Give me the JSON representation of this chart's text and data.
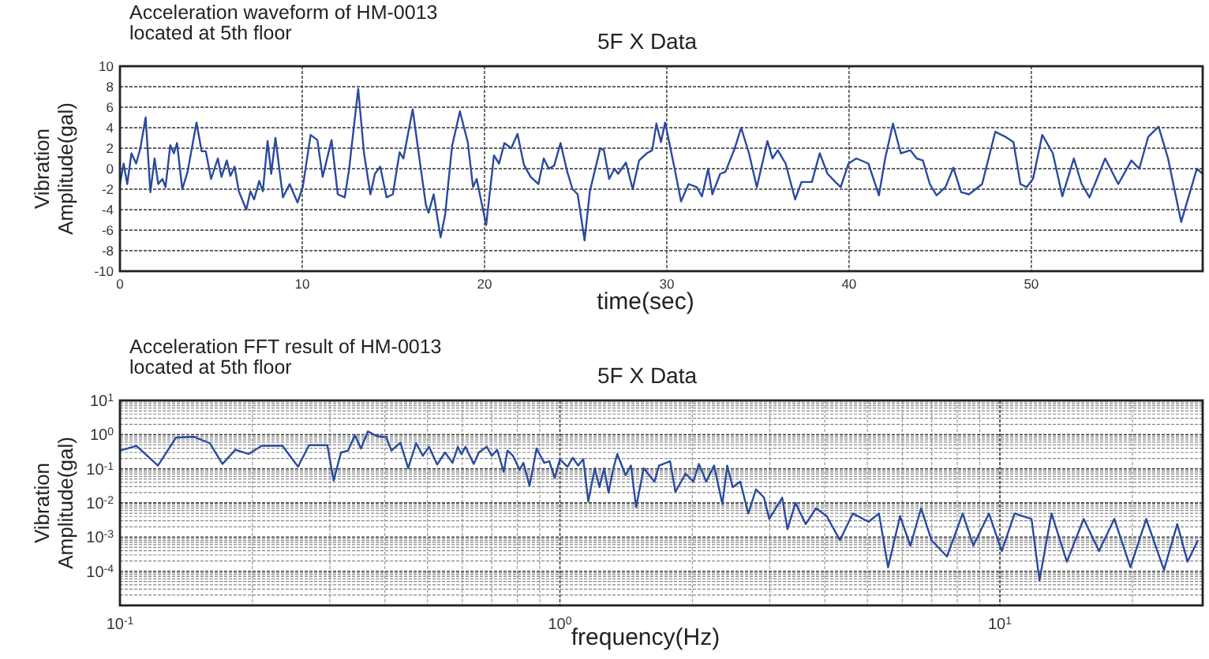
{
  "chart_data": [
    {
      "type": "line",
      "title": "5F X Data",
      "subtitle": "Acceleration waveform of HM-0013\nlocated at 5th floor",
      "xlabel": "time(sec)",
      "ylabel": "Vibration\nAmplitude(gal)",
      "xlim": [
        0,
        59.4
      ],
      "xticks": [
        0,
        10,
        20,
        30,
        40,
        50
      ],
      "ylim": [
        -10,
        10
      ],
      "yticks": [
        -10,
        -8,
        -6,
        -4,
        -2,
        0,
        2,
        4,
        6,
        8,
        10
      ],
      "grid": true,
      "marker": "none",
      "line_style": "solid",
      "series": [
        {
          "color": "#2a4a9e",
          "x": [
            0,
            0.2,
            0.4,
            0.63,
            0.89,
            1.12,
            1.41,
            1.67,
            1.9,
            2.1,
            2.33,
            2.5,
            2.76,
            2.96,
            3.13,
            3.42,
            3.71,
            4.2,
            4.48,
            4.71,
            5.0,
            5.37,
            5.57,
            5.86,
            6.06,
            6.29,
            6.52,
            6.93,
            7.16,
            7.36,
            7.64,
            7.84,
            8.1,
            8.3,
            8.53,
            8.94,
            9.31,
            9.74,
            10.03,
            10.46,
            10.83,
            11.12,
            11.61,
            11.95,
            12.33,
            12.56,
            13.07,
            13.39,
            13.74,
            13.99,
            14.28,
            14.63,
            14.97,
            15.34,
            15.55,
            16.06,
            16.35,
            16.78,
            16.93,
            17.21,
            17.59,
            17.84,
            18.22,
            18.65,
            19.08,
            19.37,
            19.57,
            20.09,
            20.52,
            20.8,
            21.09,
            21.47,
            21.81,
            22.16,
            22.53,
            22.96,
            23.25,
            23.53,
            23.82,
            24.17,
            24.54,
            24.83,
            25.11,
            25.49,
            25.78,
            26.35,
            26.55,
            26.84,
            27.13,
            27.33,
            27.76,
            28.13,
            28.48,
            28.9,
            29.2,
            29.43,
            29.68,
            29.91,
            30.43,
            30.78,
            31.2,
            31.64,
            31.93,
            32.27,
            32.5,
            32.93,
            33.22,
            33.71,
            34.08,
            34.51,
            34.94,
            35.52,
            35.8,
            36.09,
            36.52,
            37.04,
            37.39,
            37.96,
            38.39,
            38.82,
            39.25,
            39.54,
            39.97,
            40.4,
            41.06,
            41.64,
            41.98,
            42.41,
            42.84,
            43.36,
            43.71,
            44.05,
            44.43,
            44.8,
            45.29,
            45.72,
            46.15,
            46.58,
            47.3,
            48.02,
            48.59,
            49.02,
            49.4,
            49.74,
            50.09,
            50.6,
            51.18,
            51.7,
            52.33,
            52.76,
            53.19,
            54.05,
            54.77,
            55.49,
            55.92,
            56.41,
            56.98,
            57.5,
            58.22,
            58.65,
            59.08,
            59.4
          ],
          "values": [
            -1.5,
            0.5,
            -1.5,
            1.5,
            0.5,
            2,
            5,
            -2.3,
            1,
            -1.5,
            -1,
            -1.8,
            2.3,
            1.5,
            2.5,
            -2,
            -0.3,
            4.5,
            1.7,
            1.7,
            -1,
            1,
            -0.8,
            0.8,
            -0.7,
            0.2,
            -2.2,
            -4,
            -2.2,
            -3,
            -1.2,
            -2.2,
            2.7,
            -0.5,
            3,
            -2.8,
            -1.5,
            -3.3,
            -1.8,
            3.3,
            2.8,
            -0.8,
            2.8,
            -2.5,
            -2.8,
            -0.2,
            7.8,
            1.5,
            -2.5,
            -0.5,
            0.2,
            -2.8,
            -2.5,
            1.6,
            1,
            5.8,
            2,
            -3.5,
            -4.3,
            -2.5,
            -6.7,
            -4.5,
            2.2,
            5.6,
            2.6,
            -1.8,
            -1,
            -5.5,
            1.3,
            0.5,
            2.5,
            2,
            3.4,
            0.4,
            -0.8,
            -1.5,
            1,
            0,
            0.3,
            2.5,
            -0.3,
            -2,
            -2.5,
            -7,
            -2.2,
            2,
            1.8,
            -1,
            0,
            -0.5,
            0.6,
            -2,
            0.8,
            1.5,
            1.8,
            4.4,
            2.6,
            4.5,
            0,
            -3.2,
            -1.5,
            -1.8,
            -2.7,
            0,
            -2.5,
            -0.5,
            -0.3,
            1.9,
            4,
            1.5,
            -1.8,
            2.7,
            1,
            1.8,
            0.5,
            -3,
            -1.3,
            -1.3,
            1.5,
            -0.5,
            -1.3,
            -1.8,
            0.5,
            1,
            0.5,
            -2.6,
            1,
            4.4,
            1.5,
            1.8,
            1,
            0.8,
            -1.5,
            -2.6,
            -1.8,
            0.1,
            -2.3,
            -2.5,
            -1.5,
            3.6,
            3.1,
            2.6,
            -1.5,
            -1.8,
            -1,
            3.3,
            1.5,
            -2.7,
            1,
            -1.5,
            -2.8,
            1,
            -1.5,
            0.8,
            0,
            3.1,
            4.1,
            1,
            -5.2,
            -2.6,
            0,
            -0.5
          ]
        }
      ]
    },
    {
      "type": "line",
      "title": "5F X Data",
      "subtitle": "Acceleration FFT result of HM-0013\nlocated at 5th floor",
      "xlabel": "frequency(Hz)",
      "ylabel": "Vibration\nAmplitude(gal)",
      "log": "xy",
      "xlim": [
        0.1,
        28.9
      ],
      "xticks": [
        {
          "value": 0.1,
          "label": "10$^{-1}$"
        },
        {
          "value": 1,
          "label": "10$^{0}$"
        },
        {
          "value": 10,
          "label": "10$^{1}$"
        }
      ],
      "ylim": [
        1e-05,
        10
      ],
      "yticks": [
        {
          "value": 0.0001,
          "label": "10$^{-4}$"
        },
        {
          "value": 0.001,
          "label": "10$^{-3}$"
        },
        {
          "value": 0.01,
          "label": "10$^{-2}$"
        },
        {
          "value": 0.1,
          "label": "10$^{-1}$"
        },
        {
          "value": 1,
          "label": "10$^{0}$"
        },
        {
          "value": 10,
          "label": "10$^{1}$"
        }
      ],
      "grid": true,
      "marker": "none",
      "line_style": "solid",
      "series": [
        {
          "color": "#2a4a9e",
          "x": [
            0.1,
            0.109,
            0.122,
            0.134,
            0.147,
            0.16,
            0.171,
            0.183,
            0.196,
            0.21,
            0.234,
            0.254,
            0.269,
            0.296,
            0.306,
            0.318,
            0.33,
            0.342,
            0.353,
            0.366,
            0.384,
            0.403,
            0.414,
            0.434,
            0.452,
            0.471,
            0.488,
            0.504,
            0.526,
            0.548,
            0.57,
            0.586,
            0.597,
            0.61,
            0.637,
            0.654,
            0.682,
            0.7,
            0.72,
            0.745,
            0.76,
            0.782,
            0.81,
            0.826,
            0.853,
            0.885,
            0.921,
            0.946,
            0.973,
            1.0,
            1.04,
            1.07,
            1.1,
            1.13,
            1.16,
            1.2,
            1.23,
            1.26,
            1.29,
            1.32,
            1.35,
            1.41,
            1.45,
            1.49,
            1.55,
            1.64,
            1.68,
            1.78,
            1.83,
            1.93,
            2.01,
            2.07,
            2.15,
            2.24,
            2.34,
            2.4,
            2.47,
            2.57,
            2.68,
            2.79,
            2.91,
            2.99,
            3.2,
            3.29,
            3.43,
            3.62,
            3.82,
            4.04,
            4.33,
            4.63,
            5.03,
            5.31,
            5.57,
            5.93,
            6.26,
            6.62,
            6.99,
            7.58,
            8.23,
            8.7,
            9.44,
            10.1,
            10.8,
            11.8,
            12.3,
            13.1,
            14.2,
            15.5,
            16.8,
            18.2,
            19.8,
            21.5,
            23.6,
            25.3,
            26.7,
            28.2
          ],
          "values": [
            0.34,
            0.47,
            0.124,
            0.81,
            0.87,
            0.56,
            0.138,
            0.36,
            0.27,
            0.47,
            0.47,
            0.115,
            0.49,
            0.49,
            0.045,
            0.3,
            0.34,
            0.96,
            0.39,
            1.24,
            0.9,
            0.84,
            0.34,
            0.58,
            0.104,
            0.56,
            0.24,
            0.44,
            0.133,
            0.3,
            0.149,
            0.44,
            0.27,
            0.44,
            0.138,
            0.3,
            0.44,
            0.24,
            0.36,
            0.081,
            0.34,
            0.24,
            0.093,
            0.149,
            0.032,
            0.39,
            0.149,
            0.166,
            0.054,
            0.19,
            0.115,
            0.21,
            0.124,
            0.19,
            0.011,
            0.104,
            0.029,
            0.104,
            0.02,
            0.093,
            0.27,
            0.065,
            0.124,
            0.0075,
            0.104,
            0.042,
            0.124,
            0.166,
            0.021,
            0.072,
            0.042,
            0.138,
            0.042,
            0.124,
            0.0093,
            0.124,
            0.029,
            0.042,
            0.0049,
            0.025,
            0.0143,
            0.0034,
            0.0143,
            0.0017,
            0.01,
            0.0024,
            0.007,
            0.0041,
            0.00081,
            0.0049,
            0.0028,
            0.0049,
            0.00013,
            0.0041,
            0.00056,
            0.007,
            0.00081,
            0.00027,
            0.0049,
            0.00056,
            0.0049,
            0.00039,
            0.0049,
            0.0034,
            5.4e-05,
            0.0049,
            0.00019,
            0.0034,
            0.00039,
            0.0034,
            0.00013,
            0.0034,
            0.00011,
            0.0024,
            0.00019,
            0.00081
          ]
        }
      ]
    }
  ]
}
